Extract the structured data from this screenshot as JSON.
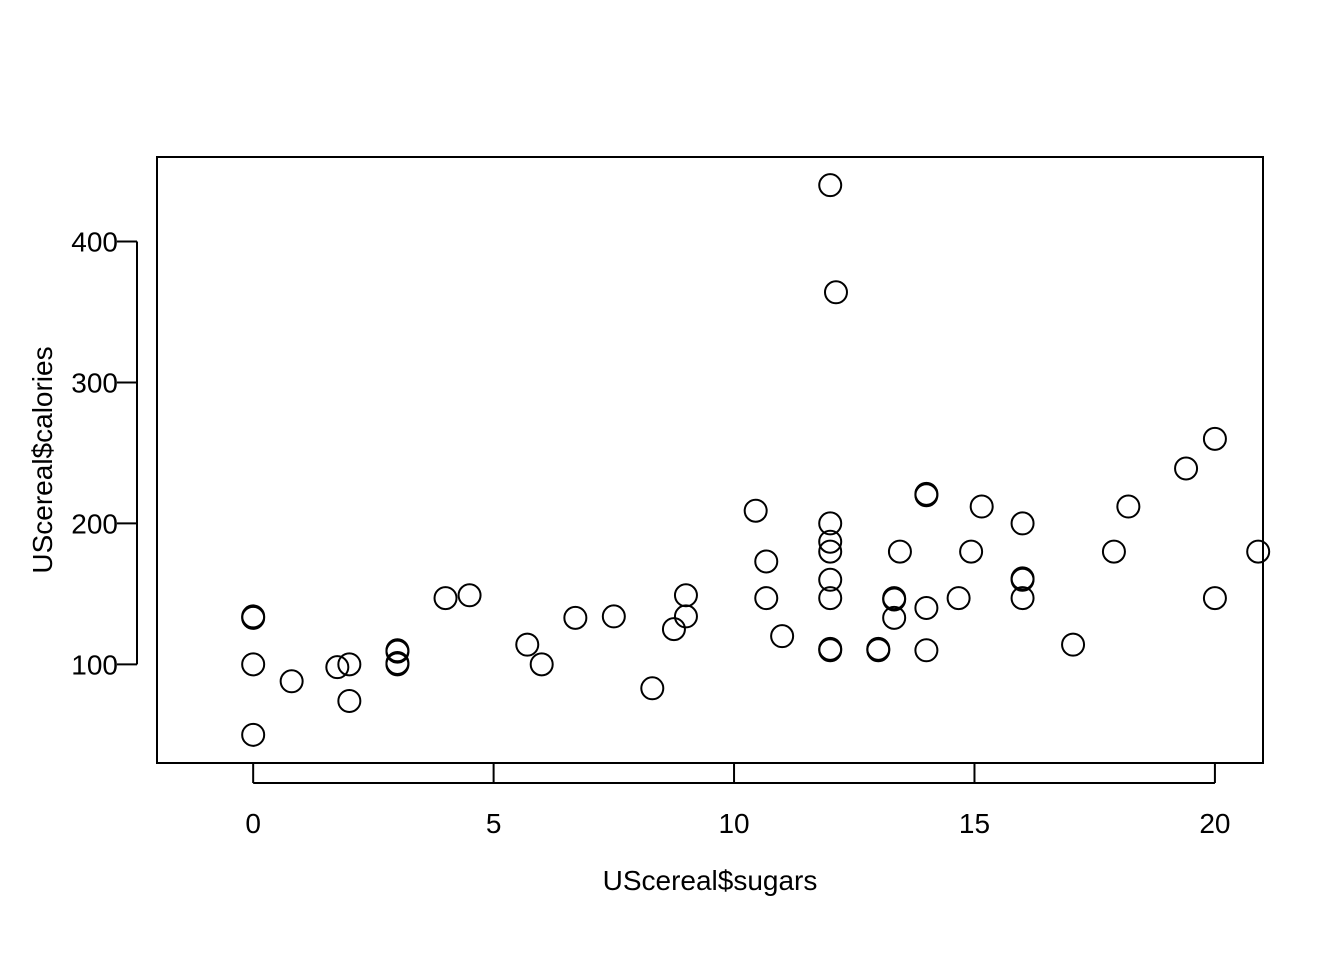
{
  "chart_data": {
    "type": "scatter",
    "title": "",
    "xlabel": "UScereal$sugars",
    "ylabel": "UScereal$calories",
    "xlim": [
      -2,
      21
    ],
    "ylim": [
      30,
      460
    ],
    "x_ticks": [
      0,
      5,
      10,
      15,
      20
    ],
    "y_ticks": [
      100,
      200,
      300,
      400
    ],
    "x_tick_labels": [
      "0",
      "5",
      "10",
      "15",
      "20"
    ],
    "y_tick_labels": [
      "100",
      "200",
      "300",
      "400"
    ],
    "marker": "open-circle",
    "grid": false,
    "points": [
      {
        "x": 0,
        "y": 134
      },
      {
        "x": 0,
        "y": 133
      },
      {
        "x": 0,
        "y": 100
      },
      {
        "x": 0,
        "y": 50
      },
      {
        "x": 0.8,
        "y": 88
      },
      {
        "x": 1.75,
        "y": 98
      },
      {
        "x": 2,
        "y": 100
      },
      {
        "x": 2,
        "y": 74
      },
      {
        "x": 3,
        "y": 110
      },
      {
        "x": 3,
        "y": 109
      },
      {
        "x": 3,
        "y": 100
      },
      {
        "x": 3,
        "y": 101
      },
      {
        "x": 4,
        "y": 147
      },
      {
        "x": 4.5,
        "y": 149
      },
      {
        "x": 5.7,
        "y": 114
      },
      {
        "x": 6,
        "y": 100
      },
      {
        "x": 6.7,
        "y": 133
      },
      {
        "x": 7.5,
        "y": 134
      },
      {
        "x": 8.3,
        "y": 83
      },
      {
        "x": 8.75,
        "y": 125
      },
      {
        "x": 9,
        "y": 149
      },
      {
        "x": 9,
        "y": 134
      },
      {
        "x": 10.45,
        "y": 209
      },
      {
        "x": 10.67,
        "y": 173
      },
      {
        "x": 10.67,
        "y": 147
      },
      {
        "x": 11,
        "y": 120
      },
      {
        "x": 12,
        "y": 440
      },
      {
        "x": 12.12,
        "y": 364
      },
      {
        "x": 12,
        "y": 200
      },
      {
        "x": 12,
        "y": 187
      },
      {
        "x": 12,
        "y": 180
      },
      {
        "x": 12,
        "y": 160
      },
      {
        "x": 12,
        "y": 147
      },
      {
        "x": 12,
        "y": 110
      },
      {
        "x": 12,
        "y": 111
      },
      {
        "x": 13,
        "y": 110
      },
      {
        "x": 13,
        "y": 111
      },
      {
        "x": 13.33,
        "y": 147
      },
      {
        "x": 13.33,
        "y": 146
      },
      {
        "x": 13.33,
        "y": 133
      },
      {
        "x": 13.45,
        "y": 180
      },
      {
        "x": 14,
        "y": 220
      },
      {
        "x": 14,
        "y": 221
      },
      {
        "x": 14,
        "y": 140
      },
      {
        "x": 14,
        "y": 110
      },
      {
        "x": 14.67,
        "y": 147
      },
      {
        "x": 14.93,
        "y": 180
      },
      {
        "x": 15.15,
        "y": 212
      },
      {
        "x": 16,
        "y": 200
      },
      {
        "x": 16,
        "y": 160
      },
      {
        "x": 16,
        "y": 161
      },
      {
        "x": 16,
        "y": 147
      },
      {
        "x": 17.05,
        "y": 114
      },
      {
        "x": 17.9,
        "y": 180
      },
      {
        "x": 18.2,
        "y": 212
      },
      {
        "x": 19.4,
        "y": 239
      },
      {
        "x": 20,
        "y": 260
      },
      {
        "x": 20,
        "y": 147
      },
      {
        "x": 20.9,
        "y": 180
      }
    ]
  }
}
